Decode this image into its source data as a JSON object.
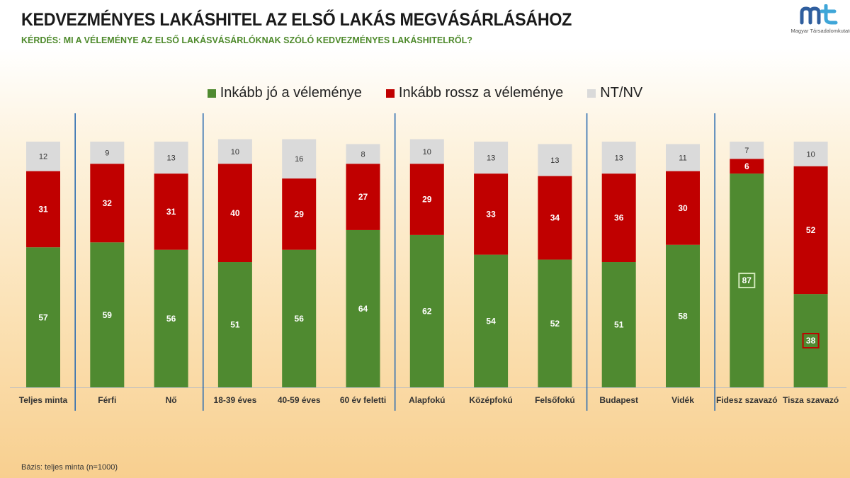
{
  "title": "KEDVEZMÉNYES LAKÁSHITEL AZ ELSŐ LAKÁS MEGVÁSÁRLÁSÁHOZ",
  "subtitle": "KÉRDÉS: MI A VÉLEMÉNYE AZ ELSŐ LAKÁSVÁSÁRLÓKNAK SZÓLÓ KEDVEZMÉNYES LAKÁSHITELRŐL?",
  "logo": {
    "text": "Magyar Társadalomkutató",
    "icon": "mt-logo-icon"
  },
  "footnote": "Bázis: teljes minta (n=1000)",
  "colors": {
    "green": "#4f8a30",
    "red": "#c00000",
    "gray": "#dadada",
    "divider": "#2e6db0"
  },
  "chart_data": {
    "type": "bar",
    "stacked": true,
    "percent_scale": true,
    "categories": [
      "Teljes minta",
      "Férfi",
      "Nő",
      "18-39 éves",
      "40-59 éves",
      "60 év feletti",
      "Alapfokú",
      "Középfokú",
      "Felsőfokú",
      "Budapest",
      "Vidék",
      "Fidesz szavazó",
      "Tisza szavazó"
    ],
    "groups": [
      [
        0
      ],
      [
        1,
        2
      ],
      [
        3,
        4,
        5
      ],
      [
        6,
        7,
        8
      ],
      [
        9,
        10
      ],
      [
        11,
        12
      ]
    ],
    "series": [
      {
        "name": "Inkább jó a véleménye",
        "color": "#4f8a30",
        "values": [
          57,
          59,
          56,
          51,
          56,
          64,
          62,
          54,
          52,
          51,
          58,
          87,
          38
        ]
      },
      {
        "name": "Inkább rossz a véleménye",
        "color": "#c00000",
        "values": [
          31,
          32,
          31,
          40,
          29,
          27,
          29,
          33,
          34,
          36,
          30,
          6,
          52
        ]
      },
      {
        "name": "NT/NV",
        "color": "#dadada",
        "values": [
          12,
          9,
          13,
          10,
          16,
          8,
          10,
          13,
          13,
          13,
          11,
          7,
          10
        ]
      }
    ],
    "highlighted": [
      {
        "category": "Fidesz szavazó",
        "series": "Inkább jó a véleménye"
      },
      {
        "category": "Tisza szavazó",
        "series": "Inkább jó a véleménye"
      }
    ],
    "legend": "top-center",
    "grid": false
  }
}
